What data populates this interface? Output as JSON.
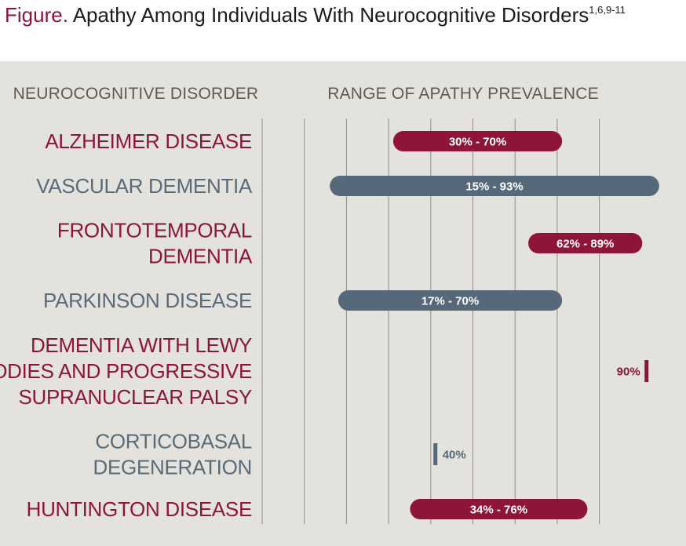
{
  "figure": {
    "lead": "Figure.",
    "title": "Apathy Among Individuals With Neurocognitive Disorders",
    "refs": "1,6,9-11"
  },
  "headers": {
    "left": "NEUROCOGNITIVE DISORDER",
    "right": "RANGE OF APATHY PREVALENCE"
  },
  "colors": {
    "red": "#8e1538",
    "gray": "#56697a",
    "panel": "#e3e2dc",
    "grid": "#8f8d86"
  },
  "chart_data": {
    "type": "bar",
    "orientation": "horizontal-range",
    "xlim": [
      10,
      95
    ],
    "grid": true,
    "series": [
      {
        "category": [
          "ALZHEIMER DISEASE"
        ],
        "low": 30,
        "high": 70,
        "label": "30% - 70%",
        "color": "red"
      },
      {
        "category": [
          "VASCULAR DEMENTIA"
        ],
        "low": 15,
        "high": 93,
        "label": "15% - 93%",
        "color": "gray"
      },
      {
        "category": [
          "FRONTOTEMPORAL",
          "DEMENTIA"
        ],
        "low": 62,
        "high": 89,
        "label": "62% - 89%",
        "color": "red"
      },
      {
        "category": [
          "PARKINSON DISEASE"
        ],
        "low": 17,
        "high": 70,
        "label": "17% - 70%",
        "color": "gray"
      },
      {
        "category": [
          "DEMENTIA WITH LEWY",
          "BODIES AND PROGRESSIVE",
          "SUPRANUCLEAR PALSY"
        ],
        "low": 90,
        "high": 90,
        "label": "90%",
        "color": "red"
      },
      {
        "category": [
          "CORTICOBASAL",
          "DEGENERATION"
        ],
        "low": 40,
        "high": 40,
        "label": "40%",
        "color": "gray"
      },
      {
        "category": [
          "HUNTINGTON DISEASE"
        ],
        "low": 34,
        "high": 76,
        "label": "34% - 76%",
        "color": "red"
      }
    ]
  }
}
